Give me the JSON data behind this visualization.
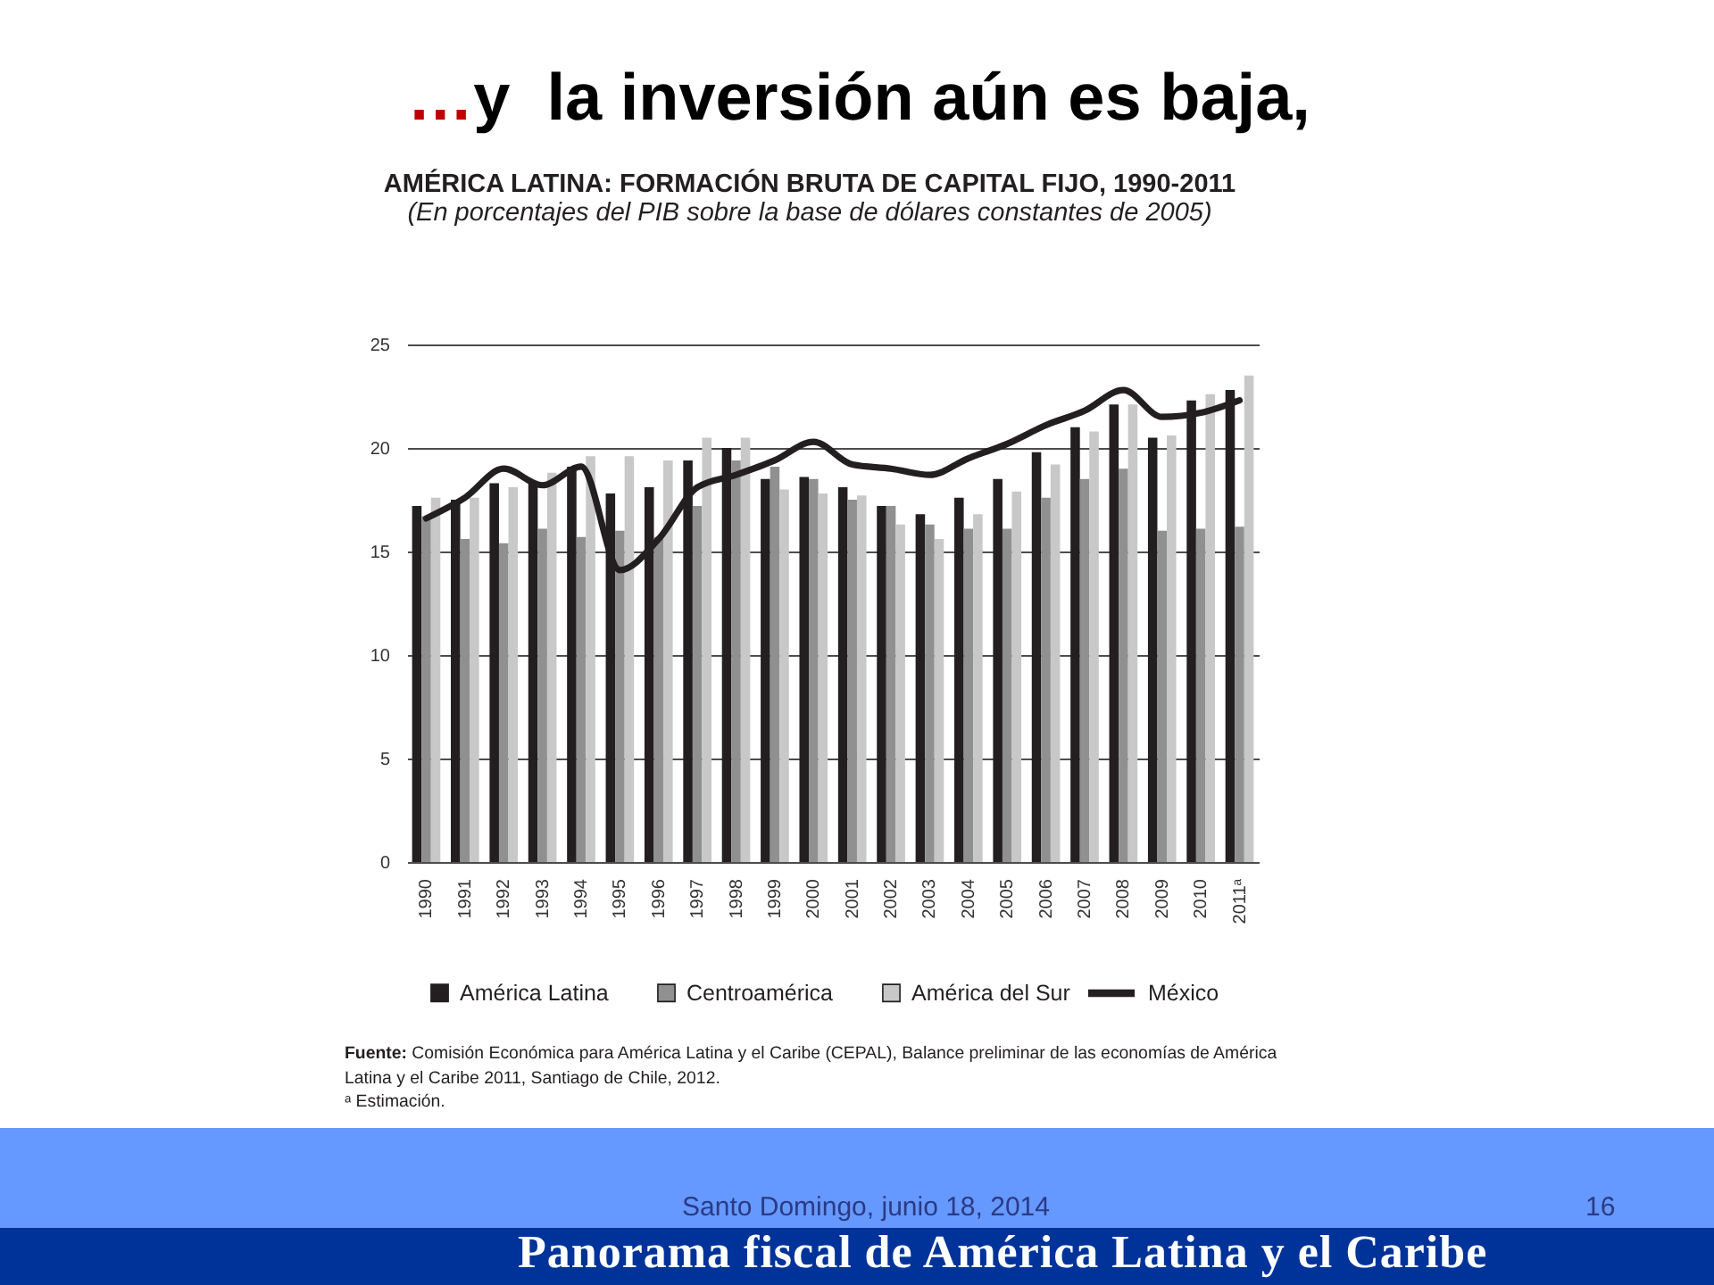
{
  "chart_data": {
    "type": "bar",
    "title": "AMÉRICA LATINA: FORMACIÓN BRUTA DE CAPITAL FIJO, 1990-2011",
    "subtitle": "(En porcentajes del PIB sobre la base de dólares constantes de 2005)",
    "categories": [
      "1990",
      "1991",
      "1992",
      "1993",
      "1994",
      "1995",
      "1996",
      "1997",
      "1998",
      "1999",
      "2000",
      "2001",
      "2002",
      "2003",
      "2004",
      "2005",
      "2006",
      "2007",
      "2008",
      "2009",
      "2010",
      "2011ᵃ"
    ],
    "series": [
      {
        "name": "América Latina",
        "type": "bar",
        "color": "#231f20",
        "values": [
          17.2,
          17.5,
          18.3,
          18.3,
          19.1,
          17.8,
          18.1,
          19.4,
          20.0,
          18.5,
          18.6,
          18.1,
          17.2,
          16.8,
          17.6,
          18.5,
          19.8,
          21.0,
          22.1,
          20.5,
          22.3,
          22.8
        ]
      },
      {
        "name": "Centroamérica",
        "type": "bar",
        "color": "#909090",
        "values": [
          16.7,
          15.6,
          15.4,
          16.1,
          15.7,
          16.0,
          15.7,
          17.2,
          19.4,
          19.1,
          18.5,
          17.5,
          17.2,
          16.3,
          16.1,
          16.1,
          17.6,
          18.5,
          19.0,
          16.0,
          16.1,
          16.2
        ]
      },
      {
        "name": "América del Sur",
        "type": "bar",
        "color": "#c8c8c8",
        "values": [
          17.6,
          17.6,
          18.1,
          18.8,
          19.6,
          19.6,
          19.4,
          20.5,
          20.5,
          18.0,
          17.8,
          17.7,
          16.3,
          15.6,
          16.8,
          17.9,
          19.2,
          20.8,
          22.1,
          20.6,
          22.6,
          23.5
        ]
      },
      {
        "name": "México",
        "type": "line",
        "color": "#231f20",
        "values": [
          16.6,
          17.6,
          19.0,
          18.2,
          19.1,
          14.1,
          15.6,
          18.1,
          18.7,
          19.4,
          20.3,
          19.2,
          19.0,
          18.7,
          19.5,
          20.2,
          21.1,
          21.8,
          22.8,
          21.5,
          21.7,
          22.3
        ]
      }
    ],
    "ylim": [
      0,
      25
    ],
    "yticks": [
      0,
      5,
      10,
      15,
      20,
      25
    ],
    "grid": "y",
    "legend": "bottom",
    "annotations": [
      "…y  la inversión aún es baja,",
      "Fuente: Comisión Económica para América Latina y el Caribe (CEPAL), Balance preliminar de las economías de América Latina y el Caribe 2011, Santiago de Chile, 2012.",
      "ᵃ Estimación.",
      "Panorama fiscal de América Latina y el Caribe",
      "Santo Domingo, junio 18, 2014",
      "16"
    ]
  }
}
